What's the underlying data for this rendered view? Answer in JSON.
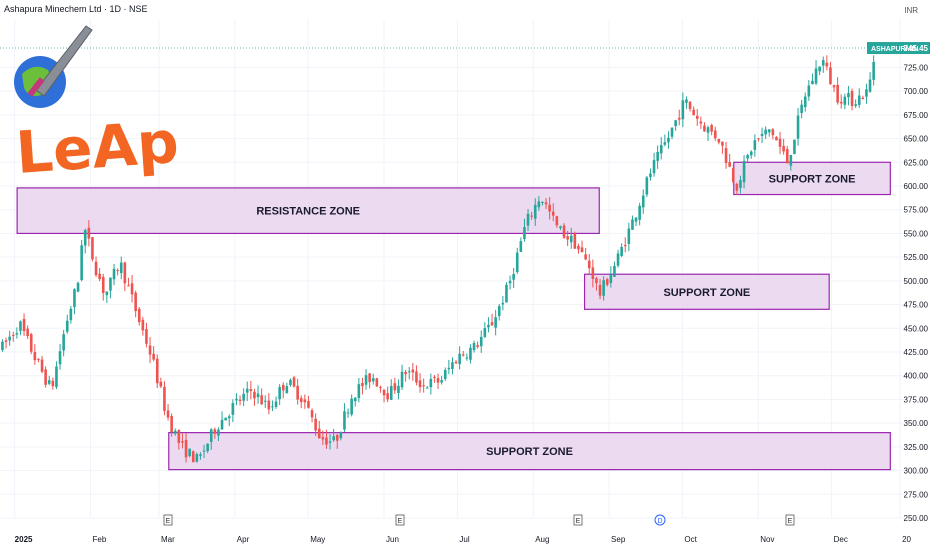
{
  "header": {
    "title": "Ashapura Minechem Ltd · 1D · NSE",
    "currency": "INR"
  },
  "colors": {
    "up": "#26a69a",
    "down": "#ef5350",
    "zone_fill": "#e9d3ee",
    "zone_border": "#9b27af",
    "last_price_bg": "#26a69a",
    "grid": "#f0f3fa"
  },
  "logo": {
    "text": "LeAp",
    "color": "#f26522"
  },
  "last_price": {
    "symbol": "ASHAPURMIN",
    "value": "745.45"
  },
  "chart_data": {
    "type": "candlestick",
    "y_axis": {
      "min": 250,
      "max": 775,
      "ticks": [
        "725.00",
        "700.00",
        "675.00",
        "650.00",
        "625.00",
        "600.00",
        "575.00",
        "550.00",
        "525.00",
        "500.00",
        "475.00",
        "450.00",
        "425.00",
        "400.00",
        "375.00",
        "350.00",
        "325.00",
        "300.00",
        "275.00",
        "250.00"
      ]
    },
    "x_axis": {
      "labels": [
        "2025",
        "Feb",
        "Mar",
        "Apr",
        "May",
        "Jun",
        "Jul",
        "Aug",
        "Sep",
        "Oct",
        "Nov",
        "Dec",
        "20"
      ]
    },
    "zones": [
      {
        "label": "RESISTANCE ZONE",
        "price_low": 550,
        "price_high": 598,
        "start": "2025-01-02",
        "end": "2025-08-28"
      },
      {
        "label": "SUPPORT ZONE",
        "price_low": 301,
        "price_high": 340,
        "start": "2025-03-05",
        "end": "2025-12-25"
      },
      {
        "label": "SUPPORT ZONE",
        "price_low": 470,
        "price_high": 507,
        "start": "2025-08-22",
        "end": "2025-11-30"
      },
      {
        "label": "SUPPORT ZONE",
        "price_low": 591,
        "price_high": 625,
        "start": "2025-10-22",
        "end": "2025-12-25"
      }
    ],
    "event_markers": [
      "E",
      "E",
      "E",
      "D",
      "E"
    ],
    "price_path": [
      [
        "2024-12-27",
        430
      ],
      [
        "2025-01-03",
        455
      ],
      [
        "2025-01-10",
        415
      ],
      [
        "2025-01-16",
        385
      ],
      [
        "2025-01-22",
        455
      ],
      [
        "2025-01-27",
        500
      ],
      [
        "2025-01-29",
        560
      ],
      [
        "2025-02-03",
        515
      ],
      [
        "2025-02-07",
        485
      ],
      [
        "2025-02-13",
        520
      ],
      [
        "2025-02-20",
        465
      ],
      [
        "2025-02-26",
        420
      ],
      [
        "2025-03-04",
        360
      ],
      [
        "2025-03-10",
        325
      ],
      [
        "2025-03-17",
        310
      ],
      [
        "2025-03-24",
        345
      ],
      [
        "2025-04-01",
        370
      ],
      [
        "2025-04-08",
        385
      ],
      [
        "2025-04-15",
        365
      ],
      [
        "2025-04-22",
        395
      ],
      [
        "2025-04-29",
        375
      ],
      [
        "2025-05-06",
        335
      ],
      [
        "2025-05-12",
        330
      ],
      [
        "2025-05-19",
        380
      ],
      [
        "2025-05-27",
        400
      ],
      [
        "2025-06-03",
        380
      ],
      [
        "2025-06-10",
        405
      ],
      [
        "2025-06-17",
        390
      ],
      [
        "2025-06-24",
        395
      ],
      [
        "2025-07-01",
        420
      ],
      [
        "2025-07-08",
        430
      ],
      [
        "2025-07-15",
        455
      ],
      [
        "2025-07-22",
        495
      ],
      [
        "2025-07-29",
        560
      ],
      [
        "2025-08-04",
        590
      ],
      [
        "2025-08-11",
        555
      ],
      [
        "2025-08-18",
        540
      ],
      [
        "2025-08-25",
        510
      ],
      [
        "2025-08-28",
        485
      ],
      [
        "2025-09-04",
        520
      ],
      [
        "2025-09-11",
        565
      ],
      [
        "2025-09-18",
        615
      ],
      [
        "2025-09-25",
        650
      ],
      [
        "2025-10-02",
        690
      ],
      [
        "2025-10-09",
        665
      ],
      [
        "2025-10-16",
        650
      ],
      [
        "2025-10-23",
        600
      ],
      [
        "2025-10-30",
        645
      ],
      [
        "2025-11-06",
        660
      ],
      [
        "2025-11-13",
        625
      ],
      [
        "2025-11-20",
        695
      ],
      [
        "2025-11-27",
        735
      ],
      [
        "2025-12-03",
        695
      ],
      [
        "2025-12-10",
        690
      ],
      [
        "2025-12-16",
        700
      ],
      [
        "2025-12-19",
        745
      ]
    ]
  }
}
